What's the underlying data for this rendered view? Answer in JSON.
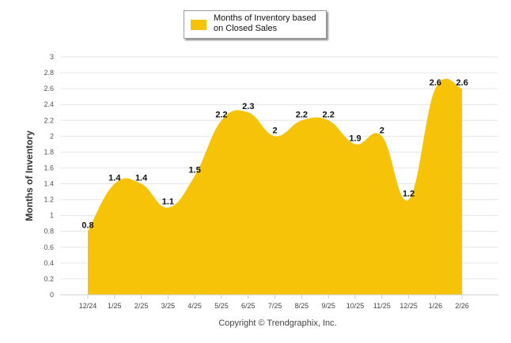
{
  "chart_data": {
    "type": "area",
    "categories": [
      "12/24",
      "1/25",
      "2/25",
      "3/25",
      "4/25",
      "5/25",
      "6/25",
      "7/25",
      "8/25",
      "9/25",
      "10/25",
      "11/25",
      "12/25",
      "1/26",
      "2/26"
    ],
    "series": [
      {
        "name": "Months of Inventory based on Closed Sales",
        "values": [
          0.8,
          1.4,
          1.4,
          1.1,
          1.5,
          2.2,
          2.3,
          2,
          2.2,
          2.2,
          1.9,
          2,
          1.2,
          2.6,
          2.6
        ]
      }
    ],
    "data_labels": [
      "0.8",
      "1.4",
      "1.4",
      "1.1",
      "1.5",
      "2.2",
      "2.3",
      "2",
      "2.2",
      "2.2",
      "1.9",
      "2",
      "1.2",
      "2.6",
      "2.6"
    ],
    "yticks": [
      "0",
      "0.2",
      "0.4",
      "0.6",
      "0.8",
      "1",
      "1.2",
      "1.4",
      "1.6",
      "1.8",
      "2",
      "2.2",
      "2.4",
      "2.6",
      "2.8",
      "3"
    ],
    "ylim": [
      0,
      3
    ],
    "ylabel": "Months of Inventory",
    "xlabel": "",
    "legend": {
      "label_line1": "Months of Inventory based",
      "label_line2": "on Closed Sales",
      "position": "top-center"
    },
    "grid": true,
    "color": "#F7C308",
    "gridline_color": "#E6E6E6"
  },
  "footer": {
    "copyright": "Copyright © Trendgraphix, Inc."
  }
}
